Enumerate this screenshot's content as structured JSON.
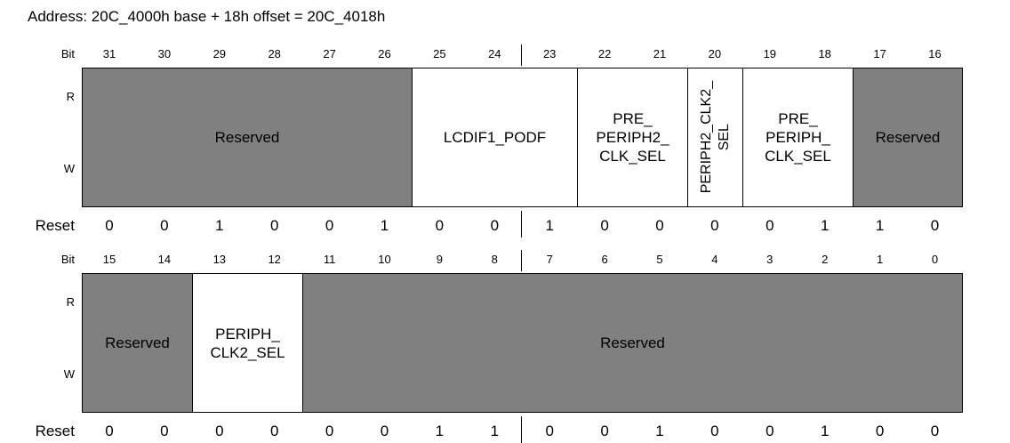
{
  "title": "Address: 20C_4000h base + 18h offset = 20C_4018h",
  "labels": {
    "bit": "Bit",
    "read": "R",
    "write": "W",
    "reset": "Reset"
  },
  "colors": {
    "reserved": "#808080",
    "active": "#ffffff",
    "line": "#000000"
  },
  "rows": [
    {
      "bits": [
        "31",
        "30",
        "29",
        "28",
        "27",
        "26",
        "25",
        "24",
        "23",
        "22",
        "21",
        "20",
        "19",
        "18",
        "17",
        "16"
      ],
      "fields": [
        {
          "name": "Reserved",
          "span": 6,
          "reserved": true,
          "vertical": false
        },
        {
          "name": "LCDIF1_PODF",
          "span": 3,
          "reserved": false,
          "vertical": false
        },
        {
          "name": "PRE_\nPERIPH2_\nCLK_SEL",
          "span": 2,
          "reserved": false,
          "vertical": false
        },
        {
          "name": "PERIPH2_CLK2_\nSEL",
          "span": 1,
          "reserved": false,
          "vertical": true
        },
        {
          "name": "PRE_\nPERIPH_\nCLK_SEL",
          "span": 2,
          "reserved": false,
          "vertical": false
        },
        {
          "name": "Reserved",
          "span": 2,
          "reserved": true,
          "vertical": false
        }
      ],
      "reset": [
        "0",
        "0",
        "1",
        "0",
        "0",
        "1",
        "0",
        "0",
        "1",
        "0",
        "0",
        "0",
        "0",
        "1",
        "1",
        "0"
      ]
    },
    {
      "bits": [
        "15",
        "14",
        "13",
        "12",
        "11",
        "10",
        "9",
        "8",
        "7",
        "6",
        "5",
        "4",
        "3",
        "2",
        "1",
        "0"
      ],
      "fields": [
        {
          "name": "Reserved",
          "span": 2,
          "reserved": true,
          "vertical": false
        },
        {
          "name": "PERIPH_\nCLK2_SEL",
          "span": 2,
          "reserved": false,
          "vertical": false
        },
        {
          "name": "Reserved",
          "span": 12,
          "reserved": true,
          "vertical": false
        }
      ],
      "reset": [
        "0",
        "0",
        "0",
        "0",
        "0",
        "0",
        "1",
        "1",
        "0",
        "0",
        "1",
        "0",
        "0",
        "1",
        "0",
        "0"
      ]
    }
  ]
}
